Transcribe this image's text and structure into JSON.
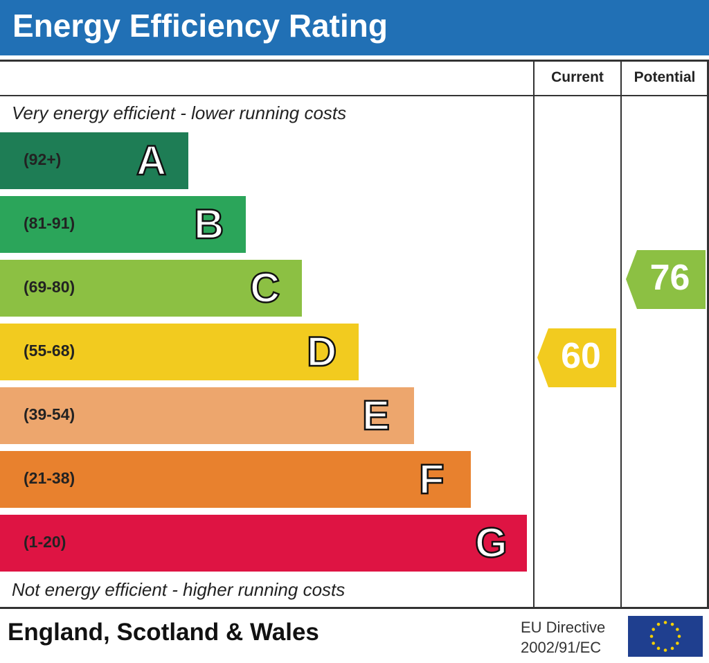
{
  "title": "Energy Efficiency Rating",
  "columns": {
    "current": "Current",
    "potential": "Potential"
  },
  "top_note": "Very energy efficient - lower running costs",
  "bottom_note": "Not energy efficient - higher running costs",
  "footer": {
    "region": "England, Scotland & Wales",
    "directive_line1": "EU Directive",
    "directive_line2": "2002/91/EC",
    "flag_icon": "eu-flag-icon"
  },
  "colors": {
    "header": "#2170b5"
  },
  "chart_data": {
    "type": "bar",
    "categories": [
      "A",
      "B",
      "C",
      "D",
      "E",
      "F",
      "G"
    ],
    "ranges": [
      "(92+)",
      "(81-91)",
      "(69-80)",
      "(55-68)",
      "(39-54)",
      "(21-38)",
      "(1-20)"
    ],
    "colors": [
      "#1e7d55",
      "#2ba55a",
      "#8cc043",
      "#f2cb1f",
      "#eda66d",
      "#e8812e",
      "#de1443"
    ],
    "current": {
      "value": 60,
      "band": "D",
      "color": "#f2cb1f"
    },
    "potential": {
      "value": 76,
      "band": "C",
      "color": "#8cc043"
    }
  }
}
